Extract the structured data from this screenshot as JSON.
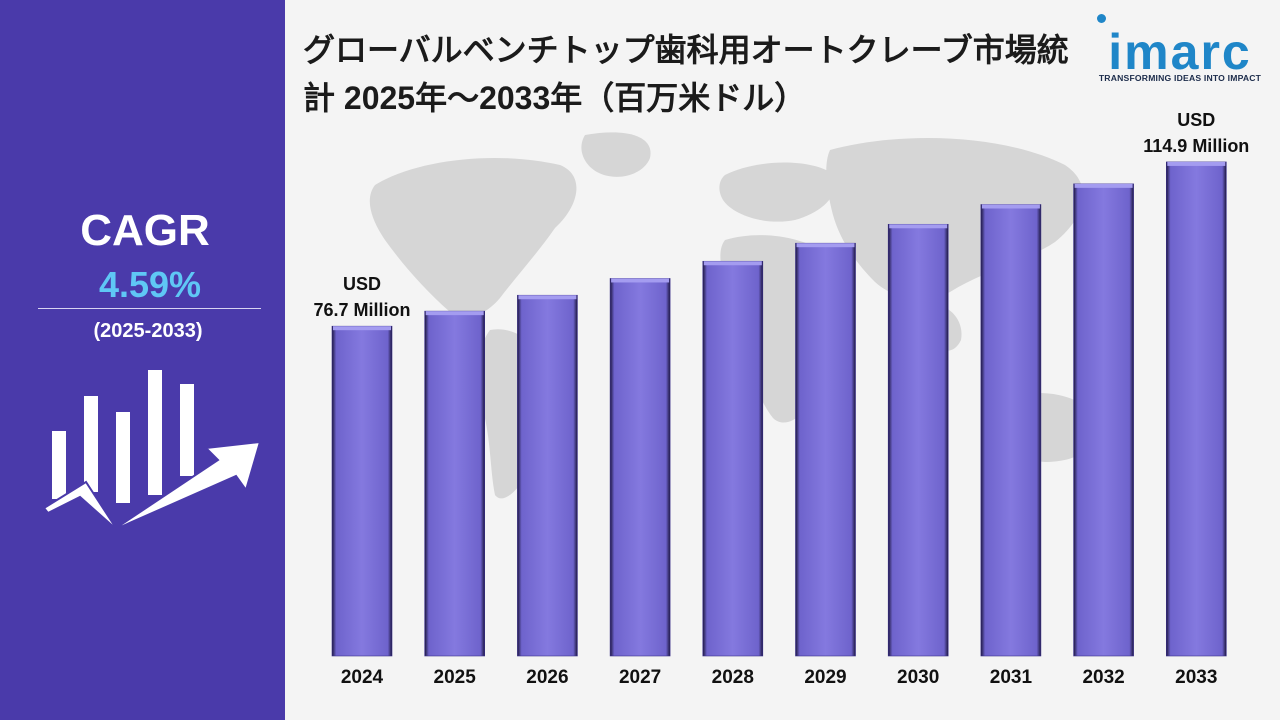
{
  "title": "グローバルベンチトップ歯科用オートクレーブ市場統計 2025年～2033年（百万米ドル）",
  "brand": {
    "name": "imarc",
    "tagline": "TRANSFORMING IDEAS INTO IMPACT",
    "color": "#1f86c8"
  },
  "sidebar": {
    "cagr_label": "CAGR",
    "cagr_value": "4.59%",
    "cagr_period": "(2025-2033)",
    "background": "#4a3aaa",
    "accent": "#5fc7f5",
    "icon": "growth-chart-arrow-icon"
  },
  "chart_data": {
    "type": "bar",
    "title": "グローバルベンチトップ歯科用オートクレーブ市場統計 2025年～2033年（百万米ドル）",
    "xlabel": "",
    "ylabel": "",
    "categories": [
      "2024",
      "2025",
      "2026",
      "2027",
      "2028",
      "2029",
      "2030",
      "2031",
      "2032",
      "2033"
    ],
    "values": [
      76.7,
      80.2,
      83.9,
      87.8,
      91.8,
      96.0,
      100.4,
      105.0,
      109.8,
      114.9
    ],
    "annotations": [
      {
        "category": "2024",
        "lines": [
          "USD",
          "76.7 Million"
        ]
      },
      {
        "category": "2033",
        "lines": [
          "USD",
          "114.9 Million"
        ]
      }
    ],
    "bar_color": "#7b70d8",
    "grid": false,
    "legend": "none"
  }
}
